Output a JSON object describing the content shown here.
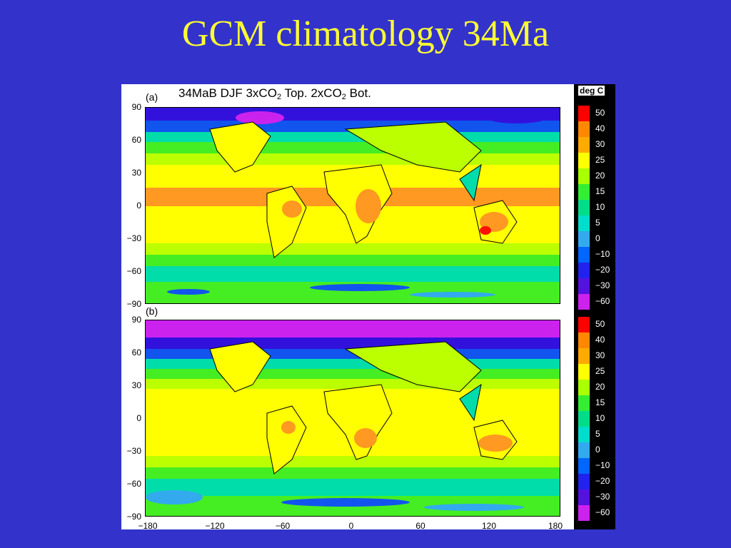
{
  "slide": {
    "title": "GCM climatology 34Ma"
  },
  "figure": {
    "header": {
      "prefix": "34MaB DJF 3xCO",
      "sub1": "2",
      "mid": " Top.  2xCO",
      "sub2": "2",
      "suffix": " Bot."
    },
    "panels": [
      {
        "label": "(a)"
      },
      {
        "label": "(b)"
      }
    ],
    "y_ticks": [
      "90",
      "60",
      "30",
      "0",
      "−30",
      "−60",
      "−90"
    ],
    "x_ticks": [
      "−180",
      "−120",
      "−60",
      "0",
      "60",
      "120",
      "180"
    ],
    "colorbar": {
      "unit": "deg C",
      "levels": [
        "50",
        "40",
        "30",
        "25",
        "20",
        "15",
        "10",
        "5",
        "0",
        "−10",
        "−20",
        "−30",
        "−60"
      ],
      "colors": [
        "#ff0000",
        "#ff8800",
        "#ffaa00",
        "#ffff00",
        "#aaff00",
        "#33ee33",
        "#00dd88",
        "#00ddcc",
        "#33aaee",
        "#0066ff",
        "#2222ee",
        "#5511dd",
        "#cc22ee"
      ]
    },
    "map_colors": {
      "polar_cold": "#cc22ee",
      "very_cold": "#3311dd",
      "cold": "#1155ee",
      "cool": "#33aaee",
      "mild": "#00ddaa",
      "temperate": "#44ee22",
      "warm": "#bbff00",
      "hot": "#ffff00",
      "tropical": "#ff9922",
      "extreme": "#ff1100"
    }
  }
}
